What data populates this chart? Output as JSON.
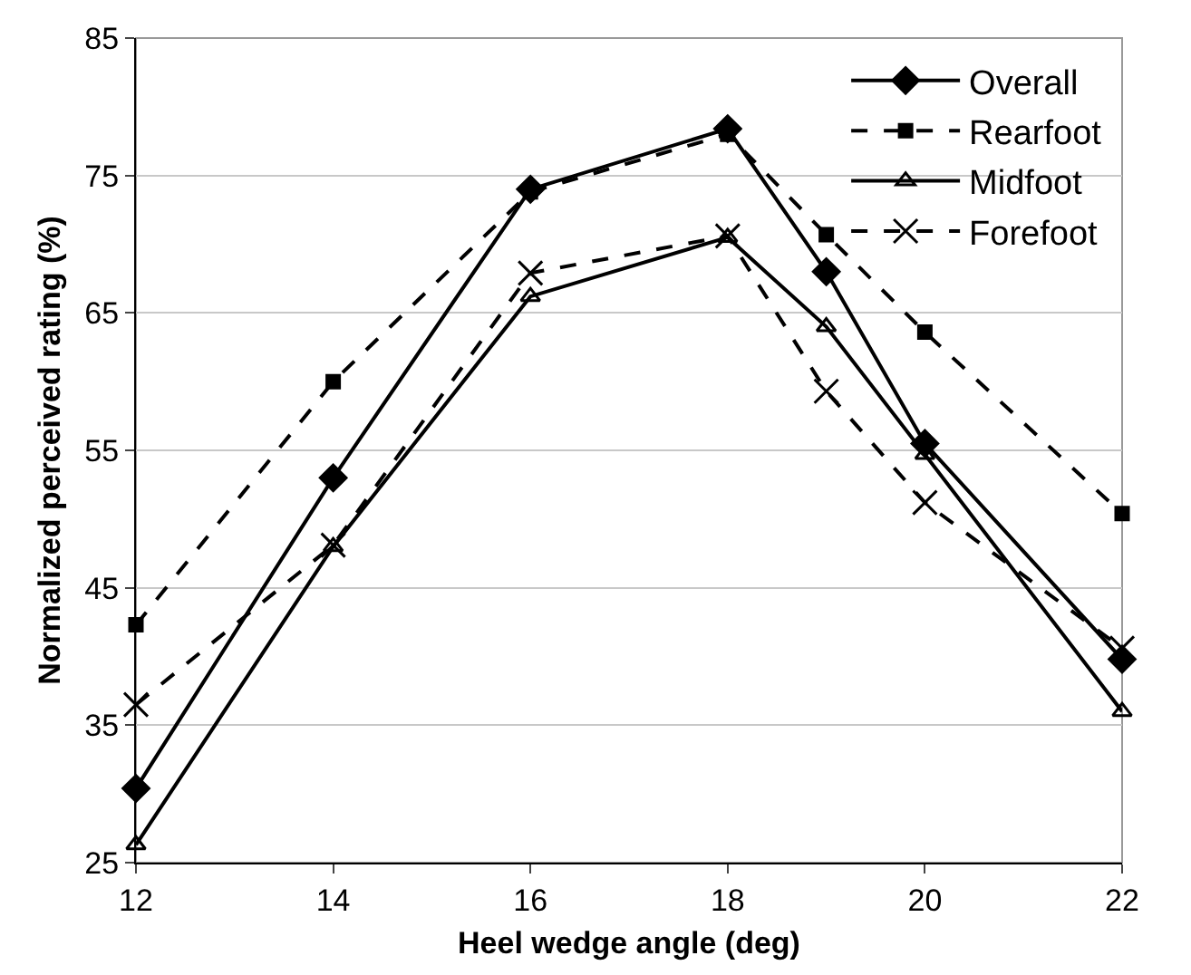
{
  "chart_data": {
    "type": "line",
    "xlabel": "Heel wedge angle (deg)",
    "ylabel": "Normalized perceived rating (%)",
    "x": [
      12,
      14,
      16,
      18,
      19,
      20,
      22
    ],
    "xlim": [
      12,
      22
    ],
    "xticks": [
      12,
      14,
      16,
      18,
      20,
      22
    ],
    "ylim": [
      25,
      85
    ],
    "yticks": [
      25,
      35,
      45,
      55,
      65,
      75,
      85
    ],
    "grid": "y",
    "legend": "top right",
    "series": [
      {
        "name": "Overall",
        "color": "#000000",
        "marker": "diamond",
        "line_style": "solid",
        "values": [
          30.4,
          53.0,
          74.0,
          78.4,
          68.0,
          55.5,
          39.8
        ]
      },
      {
        "name": "Rearfoot",
        "color": "#000000",
        "marker": "square",
        "line_style": "dashed",
        "values": [
          42.3,
          60.0,
          73.8,
          78.0,
          70.7,
          63.6,
          50.4
        ]
      },
      {
        "name": "Midfoot",
        "color": "#000000",
        "marker": "triangle",
        "line_style": "solid",
        "values": [
          26.3,
          48.0,
          66.2,
          70.5,
          64.0,
          54.7,
          36.0
        ]
      },
      {
        "name": "Forefoot",
        "color": "#000000",
        "marker": "cross",
        "line_style": "dashed",
        "values": [
          36.5,
          48.1,
          67.9,
          70.6,
          59.3,
          51.2,
          40.6
        ]
      }
    ]
  }
}
